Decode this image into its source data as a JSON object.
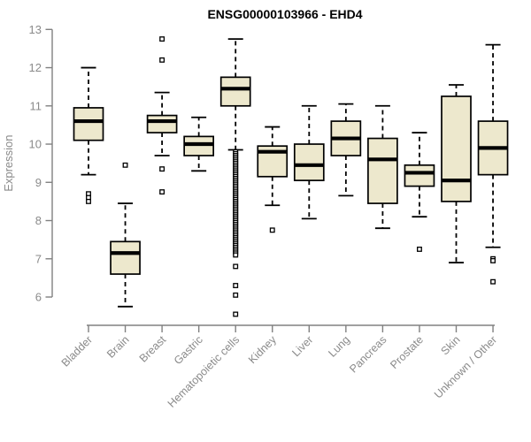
{
  "chart_data": {
    "type": "boxplot",
    "title": "ENSG00000103966 - EHD4",
    "ylabel": "Expression",
    "xlabel": "",
    "ylim": [
      6,
      13
    ],
    "yticks": [
      6,
      7,
      8,
      9,
      10,
      11,
      12,
      13
    ],
    "grid": false,
    "legend_position": "none",
    "categories": [
      "Bladder",
      "Brain",
      "Breast",
      "Gastric",
      "Hematopoietic cells",
      "Kidney",
      "Liver",
      "Lung",
      "Pancreas",
      "Prostate",
      "Skin",
      "Unknown / Other"
    ],
    "series": [
      {
        "category": "Bladder",
        "whisker_low": 9.2,
        "q1": 10.1,
        "median": 10.6,
        "q3": 10.95,
        "whisker_high": 12.0,
        "outliers": [
          8.7,
          8.6,
          8.5
        ]
      },
      {
        "category": "Brain",
        "whisker_low": 5.75,
        "q1": 6.6,
        "median": 7.15,
        "q3": 7.45,
        "whisker_high": 8.45,
        "outliers": [
          9.45
        ]
      },
      {
        "category": "Breast",
        "whisker_low": 9.7,
        "q1": 10.3,
        "median": 10.6,
        "q3": 10.75,
        "whisker_high": 11.35,
        "outliers": [
          12.75,
          12.2,
          9.35,
          8.75
        ]
      },
      {
        "category": "Gastric",
        "whisker_low": 9.3,
        "q1": 9.7,
        "median": 10.0,
        "q3": 10.2,
        "whisker_high": 10.7,
        "outliers": []
      },
      {
        "category": "Hematopoietic cells",
        "whisker_low": 9.85,
        "q1": 11.0,
        "median": 11.45,
        "q3": 11.75,
        "whisker_high": 12.75,
        "outliers": [
          6.8,
          6.3,
          6.05,
          5.55
        ],
        "outlier_band": [
          7.05,
          9.8
        ]
      },
      {
        "category": "Kidney",
        "whisker_low": 8.4,
        "q1": 9.15,
        "median": 9.8,
        "q3": 9.95,
        "whisker_high": 10.45,
        "outliers": [
          7.75
        ]
      },
      {
        "category": "Liver",
        "whisker_low": 8.05,
        "q1": 9.05,
        "median": 9.45,
        "q3": 10.0,
        "whisker_high": 11.0,
        "outliers": []
      },
      {
        "category": "Lung",
        "whisker_low": 8.65,
        "q1": 9.7,
        "median": 10.15,
        "q3": 10.6,
        "whisker_high": 11.05,
        "outliers": []
      },
      {
        "category": "Pancreas",
        "whisker_low": 7.8,
        "q1": 8.45,
        "median": 9.6,
        "q3": 10.15,
        "whisker_high": 11.0,
        "outliers": []
      },
      {
        "category": "Prostate",
        "whisker_low": 8.1,
        "q1": 8.9,
        "median": 9.25,
        "q3": 9.45,
        "whisker_high": 10.3,
        "outliers": [
          7.25
        ]
      },
      {
        "category": "Skin",
        "whisker_low": 6.9,
        "q1": 8.5,
        "median": 9.05,
        "q3": 11.25,
        "whisker_high": 11.55,
        "outliers": []
      },
      {
        "category": "Unknown / Other",
        "whisker_low": 7.3,
        "q1": 9.2,
        "median": 9.9,
        "q3": 10.6,
        "whisker_high": 12.6,
        "outliers": [
          7.0,
          6.95,
          6.4
        ]
      }
    ],
    "colors": {
      "background": "#ffffff",
      "box_fill": "#EDE8CD",
      "box_border": "#000000",
      "median": "#000000",
      "whisker": "#000000",
      "outlier": "#000000",
      "axis_line": "#808080",
      "axis_text": "#8A8A8A",
      "title": "#000000"
    }
  }
}
